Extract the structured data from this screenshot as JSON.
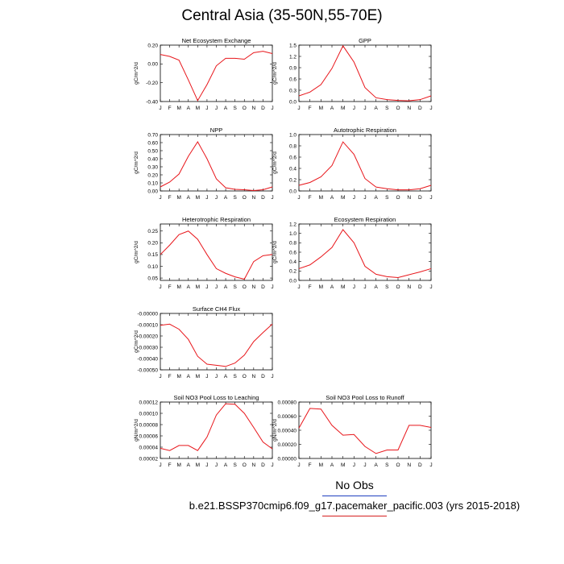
{
  "title": "Central Asia (35-50N,55-70E)",
  "legend": {
    "label": "No Obs"
  },
  "case_label": "b.e21.BSSP370cmip6.f09_g17.pacemaker_pacific.003 (yrs 2015-2018)",
  "colors": {
    "line": "#e8161b",
    "legend_line_1": "#1f3fbf",
    "legend_line_2": "#d62020"
  },
  "chart_data": [
    {
      "type": "line",
      "title": "Net Ecosystem Exchange",
      "ylabel": "gC/m^2/d",
      "categories": [
        "J",
        "F",
        "M",
        "A",
        "M",
        "J",
        "J",
        "A",
        "S",
        "O",
        "N",
        "D",
        "J"
      ],
      "yticks": [
        "0.20",
        "0.00",
        "-0.20",
        "-0.40"
      ],
      "ylim": [
        -0.4,
        0.2
      ],
      "values": [
        0.1,
        0.08,
        0.04,
        -0.17,
        -0.39,
        -0.22,
        -0.02,
        0.06,
        0.06,
        0.05,
        0.12,
        0.135,
        0.11
      ]
    },
    {
      "type": "line",
      "title": "GPP",
      "ylabel": "gC/m^2/d",
      "categories": [
        "J",
        "F",
        "M",
        "A",
        "M",
        "J",
        "J",
        "A",
        "S",
        "O",
        "N",
        "D",
        "J"
      ],
      "yticks": [
        "1.5",
        "1.2",
        "0.9",
        "0.6",
        "0.3",
        "0.0"
      ],
      "ylim": [
        0,
        1.5
      ],
      "values": [
        0.15,
        0.25,
        0.45,
        0.88,
        1.48,
        1.05,
        0.37,
        0.1,
        0.05,
        0.03,
        0.02,
        0.05,
        0.15
      ]
    },
    {
      "type": "line",
      "title": "NPP",
      "ylabel": "gC/m^2/d",
      "categories": [
        "J",
        "F",
        "M",
        "A",
        "M",
        "J",
        "J",
        "A",
        "S",
        "O",
        "N",
        "D",
        "J"
      ],
      "yticks": [
        "0.70",
        "0.60",
        "0.50",
        "0.40",
        "0.30",
        "0.20",
        "0.10",
        "0.00"
      ],
      "ylim": [
        0,
        0.7
      ],
      "values": [
        0.05,
        0.11,
        0.21,
        0.43,
        0.61,
        0.4,
        0.15,
        0.04,
        0.02,
        0.015,
        0.005,
        0.015,
        0.05
      ]
    },
    {
      "type": "line",
      "title": "Autotrophic Respiration",
      "ylabel": "gC/m^2/d",
      "categories": [
        "J",
        "F",
        "M",
        "A",
        "M",
        "J",
        "J",
        "A",
        "S",
        "O",
        "N",
        "D",
        "J"
      ],
      "yticks": [
        "1.0",
        "0.8",
        "0.6",
        "0.4",
        "0.2",
        "0.0"
      ],
      "ylim": [
        0,
        1.0
      ],
      "values": [
        0.1,
        0.15,
        0.25,
        0.45,
        0.87,
        0.65,
        0.22,
        0.07,
        0.04,
        0.02,
        0.02,
        0.04,
        0.1
      ]
    },
    {
      "type": "line",
      "title": "Heterotrophic Respiration",
      "ylabel": "gC/m^2/d",
      "categories": [
        "J",
        "F",
        "M",
        "A",
        "M",
        "J",
        "J",
        "A",
        "S",
        "O",
        "N",
        "D",
        "J"
      ],
      "yticks": [
        "0.25",
        "0.20",
        "0.15",
        "0.10",
        "0.05"
      ],
      "ylim": [
        0.04,
        0.28
      ],
      "values": [
        0.15,
        0.19,
        0.235,
        0.25,
        0.215,
        0.15,
        0.09,
        0.07,
        0.055,
        0.045,
        0.12,
        0.145,
        0.15
      ]
    },
    {
      "type": "line",
      "title": "Ecosystem Respiration",
      "ylabel": "gC/m^2/d",
      "categories": [
        "J",
        "F",
        "M",
        "A",
        "M",
        "J",
        "J",
        "A",
        "S",
        "O",
        "N",
        "D",
        "J"
      ],
      "yticks": [
        "1.2",
        "1.0",
        "0.8",
        "0.6",
        "0.4",
        "0.2",
        "0.0"
      ],
      "ylim": [
        0,
        1.2
      ],
      "values": [
        0.25,
        0.33,
        0.5,
        0.7,
        1.08,
        0.8,
        0.3,
        0.13,
        0.08,
        0.06,
        0.12,
        0.18,
        0.25
      ]
    },
    {
      "type": "line",
      "title": "Surface CH4 Flux",
      "ylabel": "gC/m^2/d",
      "categories": [
        "J",
        "F",
        "M",
        "A",
        "M",
        "J",
        "J",
        "A",
        "S",
        "O",
        "N",
        "D",
        "J"
      ],
      "yticks": [
        "-0.00000",
        "-0.00010",
        "-0.00020",
        "-0.00030",
        "-0.00040",
        "-0.00050"
      ],
      "ylim": [
        -0.0005,
        0.0
      ],
      "values": [
        -0.000105,
        -9.5e-05,
        -0.00014,
        -0.00023,
        -0.00038,
        -0.00045,
        -0.00046,
        -0.00047,
        -0.00044,
        -0.00037,
        -0.00025,
        -0.00017,
        -9.5e-05
      ]
    },
    {
      "type": "line",
      "title": "Soil NO3 Pool Loss to Leaching",
      "ylabel": "gN/m^2/d",
      "categories": [
        "J",
        "F",
        "M",
        "A",
        "M",
        "J",
        "J",
        "A",
        "S",
        "O",
        "N",
        "D",
        "J"
      ],
      "yticks": [
        "0.00012",
        "0.00010",
        "0.00008",
        "0.00006",
        "0.00004",
        "0.00002"
      ],
      "ylim": [
        2e-05,
        0.00012
      ],
      "values": [
        3.8e-05,
        3.4e-05,
        4.3e-05,
        4.3e-05,
        3.4e-05,
        5.8e-05,
        9.7e-05,
        0.000117,
        0.000116,
        0.0001,
        7.5e-05,
        4.9e-05,
        3.7e-05
      ]
    },
    {
      "type": "line",
      "title": "Soil NO3 Pool Loss to Runoff",
      "ylabel": "gN/m^2/d",
      "categories": [
        "J",
        "F",
        "M",
        "A",
        "M",
        "J",
        "J",
        "A",
        "S",
        "O",
        "N",
        "D",
        "J"
      ],
      "yticks": [
        "0.00080",
        "0.00060",
        "0.00040",
        "0.00020",
        "0.00000"
      ],
      "ylim": [
        0,
        0.0008
      ],
      "values": [
        0.00043,
        0.00071,
        0.0007,
        0.00047,
        0.00033,
        0.00034,
        0.00017,
        7e-05,
        0.00012,
        0.00012,
        0.00047,
        0.00047,
        0.00044
      ]
    }
  ]
}
